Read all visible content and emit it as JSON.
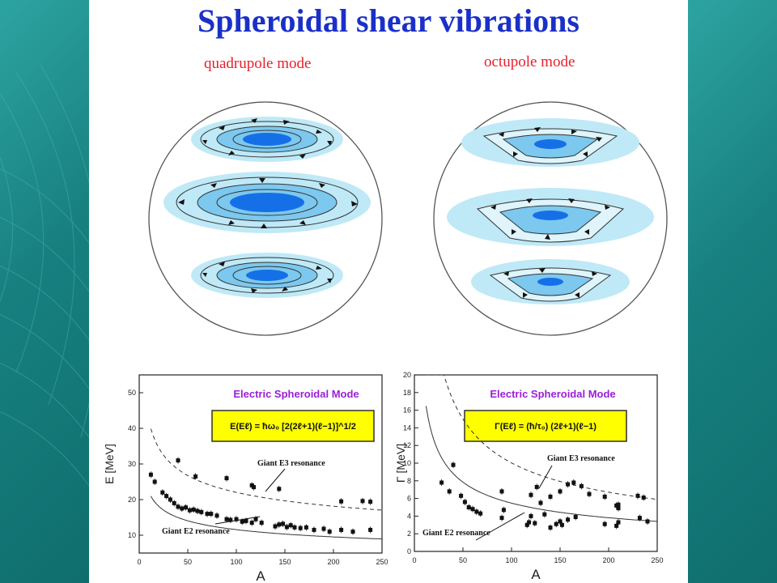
{
  "title": "Spheroidal shear vibrations",
  "modes": [
    {
      "label": "quadrupole mode"
    },
    {
      "label": "octupole mode"
    }
  ],
  "colors": {
    "title": "#1a30c8",
    "mode_label": "#e8202a",
    "chart_title": "#9b1fd6",
    "formula_box": "#ffff00",
    "ring_light": "#bfe9f7",
    "ring_mid": "#7cc8ee",
    "core": "#1570e8",
    "background": "#1f8d8c"
  },
  "chart_data": [
    {
      "type": "scatter",
      "title": "Electric Spheroidal Mode",
      "formula": "E(Eℓ) = ħω₀ [2(2ℓ+1)(ℓ−1)]^1/2",
      "xlabel": "A",
      "ylabel": "E [MeV]",
      "xlim": [
        0,
        250
      ],
      "ylim": [
        5,
        55
      ],
      "xticks": [
        "0",
        "50",
        "100",
        "150",
        "200",
        "250"
      ],
      "yticks": [
        "10",
        "20",
        "30",
        "40",
        "50"
      ],
      "series": [
        {
          "name": "Giant E2 resonance",
          "x": [
            12,
            16,
            24,
            28,
            32,
            36,
            40,
            44,
            48,
            52,
            56,
            60,
            64,
            70,
            74,
            80,
            90,
            94,
            100,
            106,
            110,
            116,
            120,
            126,
            140,
            144,
            148,
            152,
            156,
            160,
            166,
            172,
            180,
            190,
            196,
            208,
            220,
            238
          ],
          "y": [
            27,
            25,
            22,
            21,
            20,
            19,
            18,
            17.5,
            17.8,
            17,
            17.2,
            16.8,
            16.5,
            16,
            16,
            15.5,
            14.5,
            14.3,
            14.5,
            13.8,
            14,
            13.5,
            14.5,
            13.5,
            12.5,
            13,
            13.2,
            12.3,
            12.8,
            12.2,
            12,
            12.2,
            11.5,
            11.8,
            11,
            11.5,
            11,
            11.5
          ]
        },
        {
          "name": "Giant E3 resonance",
          "x": [
            40,
            58,
            90,
            116,
            118,
            144,
            208,
            230,
            238
          ],
          "y": [
            31,
            26.5,
            26,
            24,
            23.5,
            23,
            19.5,
            19.6,
            19.4
          ]
        }
      ],
      "curves": [
        {
          "name": "Giant E2 resonance",
          "style": "solid"
        },
        {
          "name": "Giant E3 resonance",
          "style": "dashed"
        }
      ]
    },
    {
      "type": "scatter",
      "title": "Electric Spheroidal Mode",
      "formula": "Γ(Eℓ) = (ħ/τ₀) (2ℓ+1)(ℓ−1)",
      "xlabel": "A",
      "ylabel": "Γ [MeV]",
      "xlim": [
        0,
        250
      ],
      "ylim": [
        0,
        20
      ],
      "xticks": [
        "0",
        "50",
        "100",
        "150",
        "200",
        "250"
      ],
      "yticks": [
        "0",
        "2",
        "4",
        "6",
        "8",
        "10",
        "12",
        "14",
        "16",
        "18",
        "20"
      ],
      "series": [
        {
          "name": "Giant E2 resonance",
          "x": [
            28,
            36,
            48,
            52,
            56,
            60,
            64,
            68,
            90,
            92,
            116,
            118,
            120,
            124,
            140,
            146,
            150,
            152,
            158,
            166,
            196,
            208,
            210,
            232,
            240
          ],
          "y": [
            7.8,
            6.8,
            6.3,
            5.6,
            5,
            4.8,
            4.5,
            4.3,
            3.8,
            4.7,
            3,
            3.3,
            4,
            3.2,
            2.7,
            3.1,
            3.4,
            3,
            3.6,
            3.9,
            3.1,
            2.9,
            3.3,
            3.8,
            3.4
          ]
        },
        {
          "name": "Giant E3 resonance",
          "x": [
            40,
            90,
            120,
            126,
            130,
            134,
            140,
            150,
            158,
            164,
            172,
            180,
            196,
            208,
            210,
            210,
            230,
            236
          ],
          "y": [
            9.8,
            6.8,
            6.4,
            7.3,
            5.5,
            4.2,
            6.2,
            6.8,
            7.6,
            7.8,
            7.4,
            6.5,
            6.2,
            5.2,
            4.9,
            5.3,
            6.3,
            6.1
          ]
        }
      ],
      "curves": [
        {
          "name": "Giant E2 resonance",
          "style": "solid"
        },
        {
          "name": "Giant E3 resonance",
          "style": "dashed"
        }
      ]
    }
  ]
}
